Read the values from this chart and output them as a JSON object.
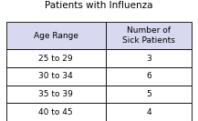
{
  "title": "Patients with Influenza",
  "col1_header": "Age Range",
  "col2_header": "Number of\nSick Patients",
  "rows": [
    [
      "25 to 29",
      "3"
    ],
    [
      "30 to 34",
      "6"
    ],
    [
      "35 to 39",
      "5"
    ],
    [
      "40 to 45",
      "4"
    ]
  ],
  "header_bg": "#d8d8f0",
  "cell_bg": "#ffffff",
  "border_color": "#000000",
  "title_fontsize": 7.5,
  "header_fontsize": 6.5,
  "cell_fontsize": 6.5,
  "fig_bg": "#ffffff"
}
